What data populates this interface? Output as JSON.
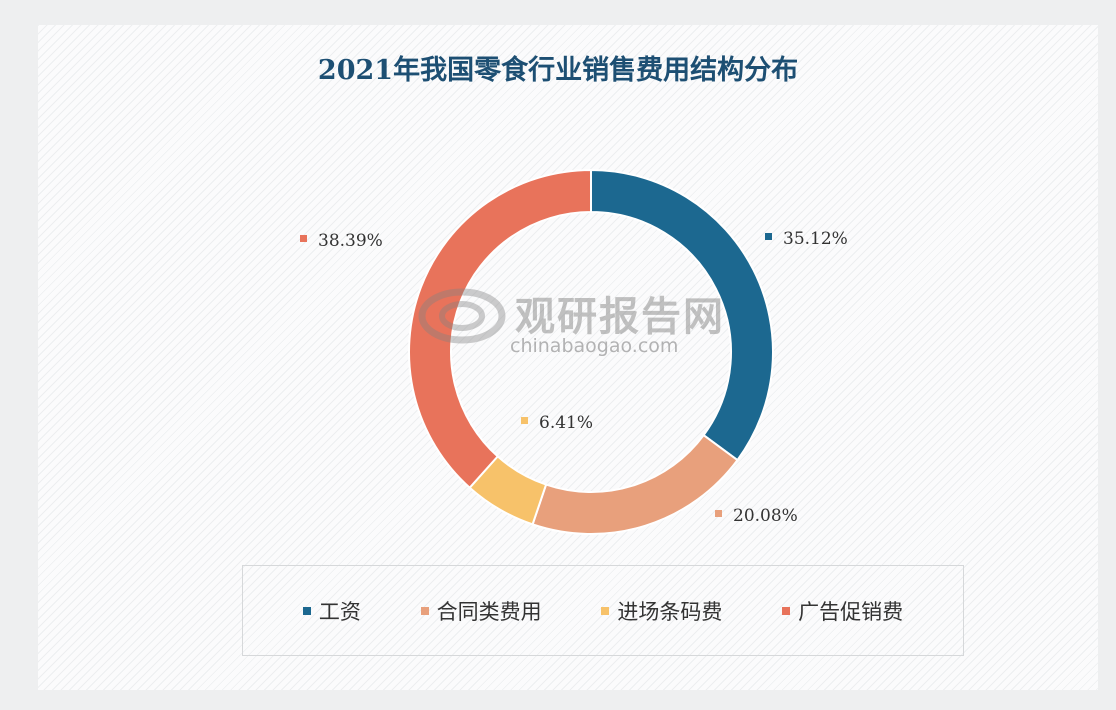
{
  "chart_data": {
    "type": "pie",
    "subtype": "donut",
    "title": "2021年我国零食行业销售费用结构分布",
    "categories": [
      "工资",
      "合同类费用",
      "进场条码费",
      "广告促销费"
    ],
    "values": [
      35.12,
      20.08,
      6.41,
      38.39
    ],
    "labels": [
      "35.12%",
      "20.08%",
      "6.41%",
      "38.39%"
    ],
    "colors": [
      "#1c6890",
      "#e8a07c",
      "#f7c26a",
      "#e8735b"
    ],
    "unit": "%",
    "legend": "bottom"
  },
  "watermark": {
    "name": "观研报告网",
    "url": "chinabaogao.com"
  }
}
